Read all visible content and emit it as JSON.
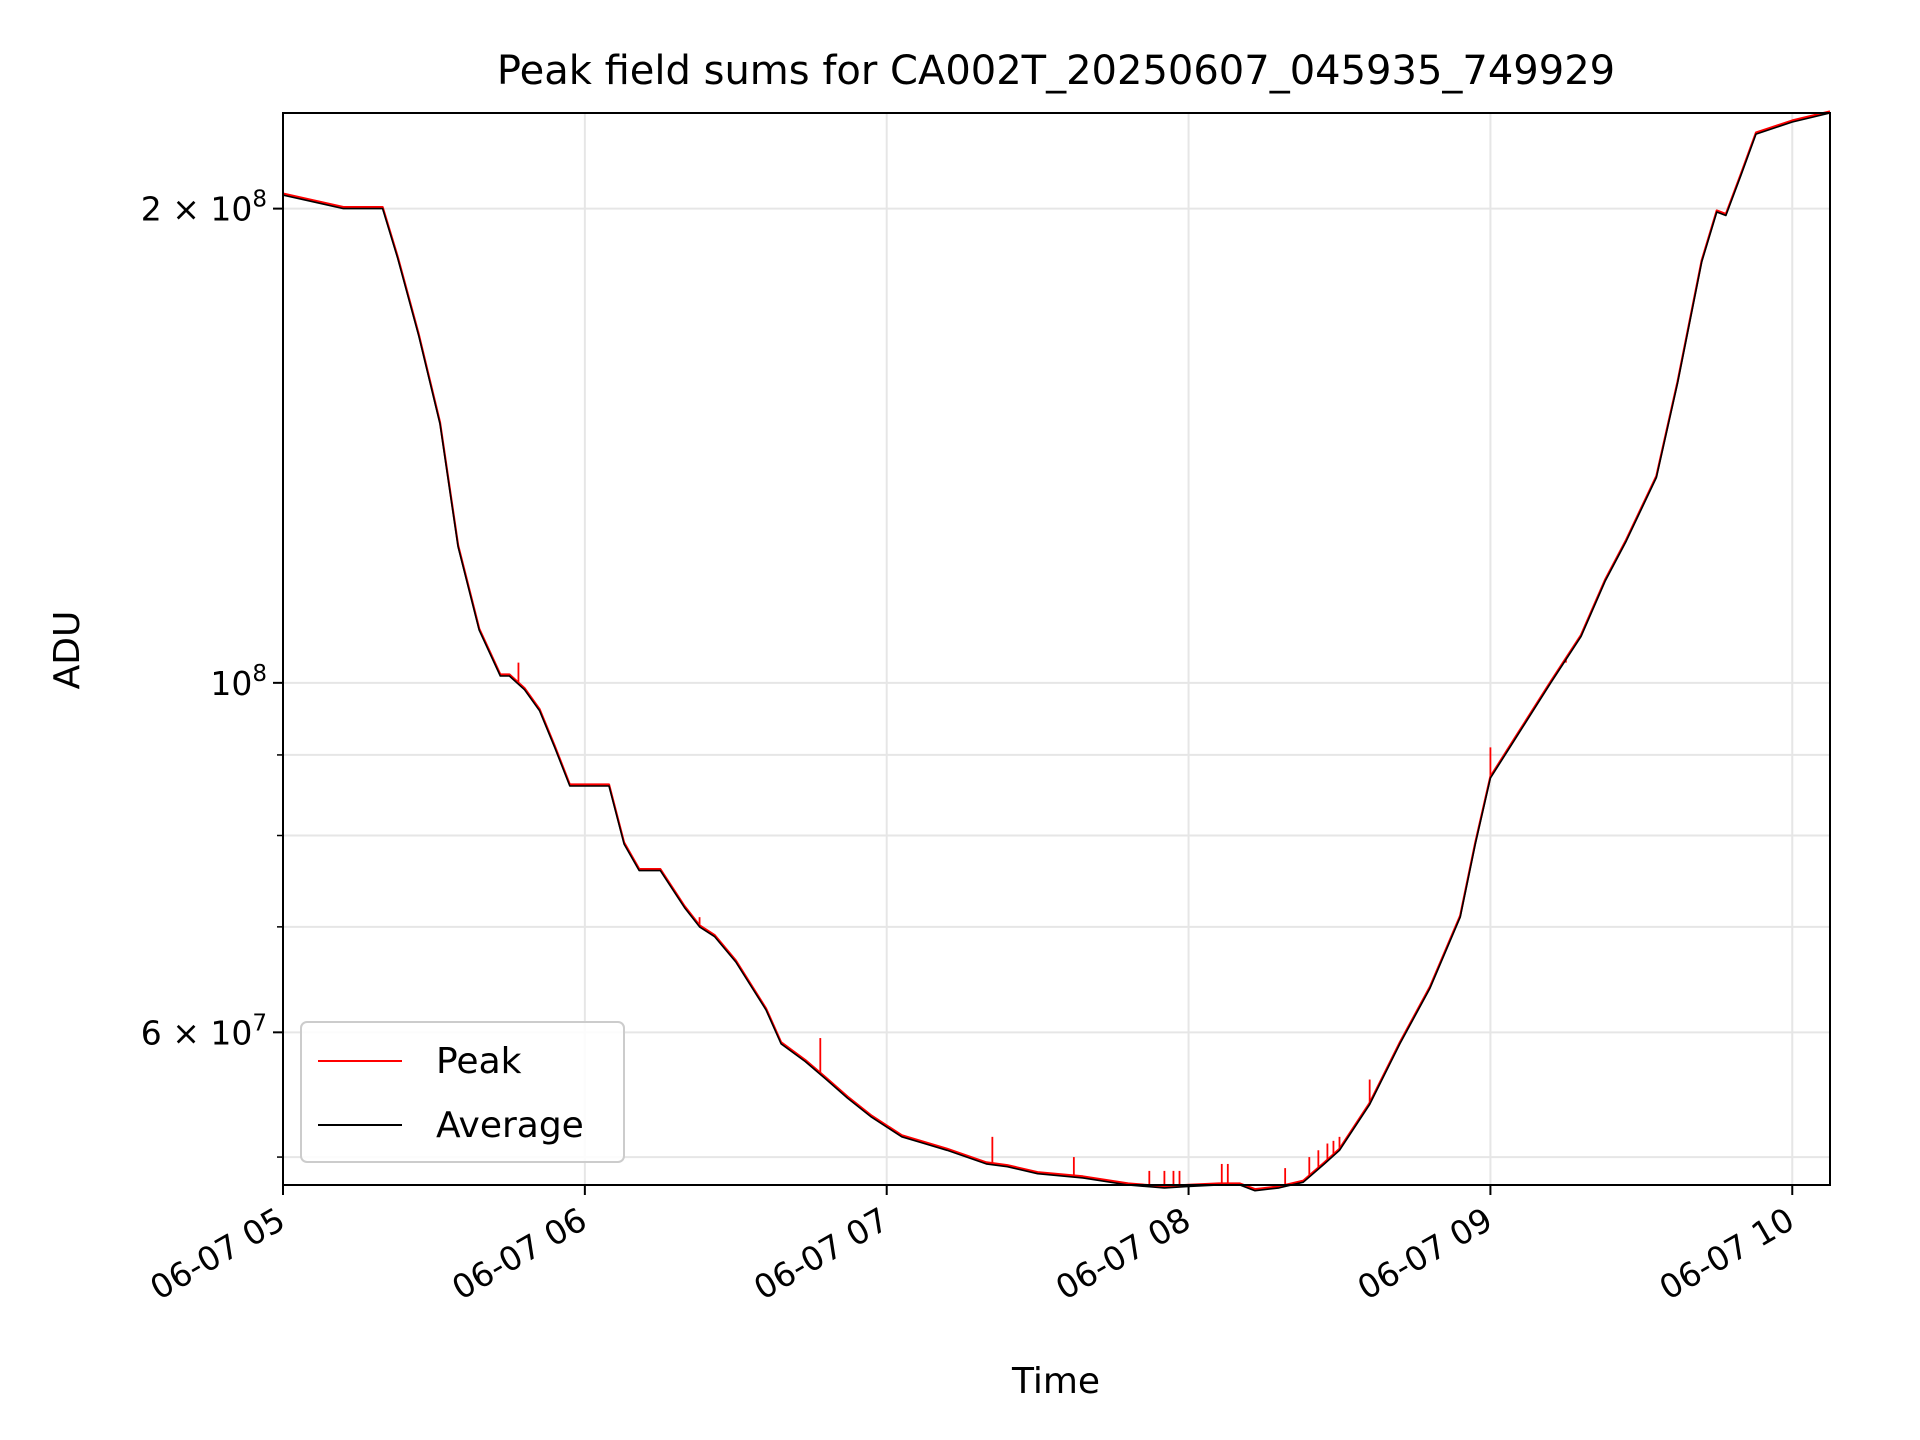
{
  "chart_data": {
    "type": "line",
    "title": "Peak field sums for CA002T_20250607_045935_749929",
    "xlabel": "Time",
    "ylabel": "ADU",
    "y_scale": "log",
    "x_tick_labels": [
      "06-07 05",
      "06-07 06",
      "06-07 07",
      "06-07 08",
      "06-07 09",
      "06-07 10"
    ],
    "x_ticks_hours": [
      5,
      6,
      7,
      8,
      9,
      10
    ],
    "xlim_hours": [
      5.0,
      10.125
    ],
    "ylim": [
      48000000,
      230000000
    ],
    "y_major_ticks": [
      {
        "value": 200000000,
        "base": "2 × 10",
        "exp": "8"
      },
      {
        "value": 100000000,
        "base": "10",
        "exp": "8"
      },
      {
        "value": 60000000,
        "base": "6 × 10",
        "exp": "7"
      }
    ],
    "y_minor_ticks": [
      50000000,
      70000000,
      80000000,
      90000000
    ],
    "grid": true,
    "legend_position": "lower-left",
    "series": [
      {
        "name": "Peak",
        "color": "#ff0000"
      },
      {
        "name": "Average",
        "color": "#000000"
      }
    ],
    "x_hours": [
      5.0,
      5.1,
      5.2,
      5.33,
      5.38,
      5.45,
      5.52,
      5.58,
      5.65,
      5.72,
      5.75,
      5.8,
      5.85,
      5.9,
      5.95,
      6.02,
      6.08,
      6.13,
      6.18,
      6.25,
      6.33,
      6.38,
      6.43,
      6.5,
      6.6,
      6.65,
      6.73,
      6.8,
      6.87,
      6.95,
      7.05,
      7.2,
      7.33,
      7.4,
      7.5,
      7.65,
      7.8,
      7.92,
      8.0,
      8.1,
      8.17,
      8.22,
      8.3,
      8.38,
      8.45,
      8.5,
      8.6,
      8.7,
      8.8,
      8.9,
      8.95,
      9.0,
      9.08,
      9.2,
      9.3,
      9.38,
      9.45,
      9.55,
      9.62,
      9.7,
      9.75,
      9.78,
      9.83,
      9.88,
      10.0,
      10.125
    ],
    "average_values": [
      204000000,
      202000000,
      200000000,
      200000000,
      186000000,
      166000000,
      146000000,
      122000000,
      108000000,
      101000000,
      101000000,
      99000000,
      96000000,
      91000000,
      86000000,
      86000000,
      86000000,
      79000000,
      76000000,
      76000000,
      72000000,
      70000000,
      69000000,
      66500000,
      62000000,
      59000000,
      57500000,
      56000000,
      54500000,
      53000000,
      51500000,
      50500000,
      49500000,
      49300000,
      48800000,
      48500000,
      48000000,
      47800000,
      47900000,
      48000000,
      48000000,
      47600000,
      47800000,
      48200000,
      49500000,
      50500000,
      54000000,
      59000000,
      64000000,
      71000000,
      79000000,
      87000000,
      92000000,
      100000000,
      107000000,
      116000000,
      123000000,
      135000000,
      155000000,
      185000000,
      199000000,
      198000000,
      210000000,
      223000000,
      227000000,
      230000000
    ],
    "peak_spikes": [
      {
        "x": 5.78,
        "y": 103000000
      },
      {
        "x": 6.38,
        "y": 71000000
      },
      {
        "x": 6.78,
        "y": 59500000
      },
      {
        "x": 7.35,
        "y": 51500000
      },
      {
        "x": 7.62,
        "y": 50000000
      },
      {
        "x": 7.87,
        "y": 49000000
      },
      {
        "x": 7.92,
        "y": 49000000
      },
      {
        "x": 7.95,
        "y": 49000000
      },
      {
        "x": 7.97,
        "y": 49000000
      },
      {
        "x": 8.11,
        "y": 49500000
      },
      {
        "x": 8.13,
        "y": 49500000
      },
      {
        "x": 8.32,
        "y": 49200000
      },
      {
        "x": 8.4,
        "y": 50000000
      },
      {
        "x": 8.43,
        "y": 50500000
      },
      {
        "x": 8.46,
        "y": 51000000
      },
      {
        "x": 8.48,
        "y": 51200000
      },
      {
        "x": 8.5,
        "y": 51500000
      },
      {
        "x": 8.6,
        "y": 56000000
      },
      {
        "x": 9.0,
        "y": 91000000
      },
      {
        "x": 9.25,
        "y": 103000000
      }
    ]
  }
}
